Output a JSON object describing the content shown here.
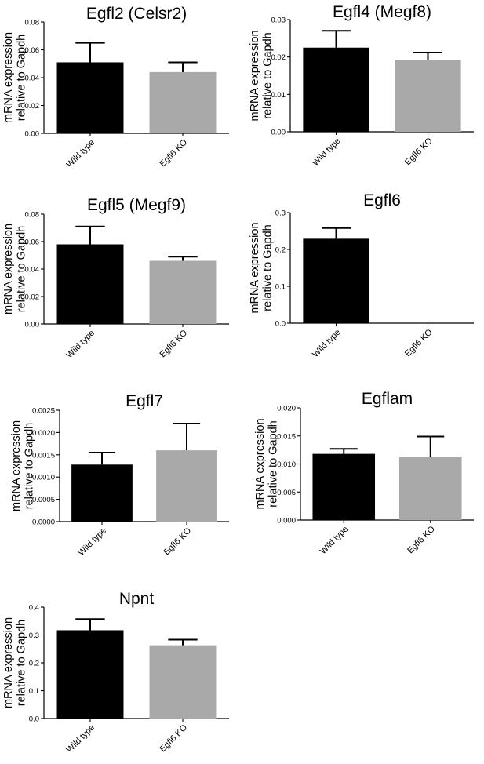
{
  "chart_data": [
    {
      "type": "bar",
      "title": "Egfl2 (Celsr2)",
      "ylabel": "mRNA expression relative to Gapdh",
      "categories": [
        "Wild type",
        "Egfl6 KO"
      ],
      "values": [
        0.051,
        0.044
      ],
      "errors": [
        0.014,
        0.007
      ],
      "ylim": [
        0,
        0.08
      ],
      "yticks": [
        "0.00",
        "0.02",
        "0.04",
        "0.06",
        "0.08"
      ],
      "bar_colors": [
        "#000000",
        "#a9a9a9"
      ]
    },
    {
      "type": "bar",
      "title": "Egfl4 (Megf8)",
      "ylabel": "mRNA expression relative to Gapdh",
      "categories": [
        "Wild type",
        "Egfl6 KO"
      ],
      "values": [
        0.0225,
        0.0192
      ],
      "errors": [
        0.0045,
        0.002
      ],
      "ylim": [
        0,
        0.03
      ],
      "yticks": [
        "0.00",
        "0.01",
        "0.02",
        "0.03"
      ],
      "bar_colors": [
        "#000000",
        "#a9a9a9"
      ]
    },
    {
      "type": "bar",
      "title": "Egfl5 (Megf9)",
      "ylabel": "mRNA expression relative to Gapdh",
      "categories": [
        "Wild type",
        "Egfl6 KO"
      ],
      "values": [
        0.058,
        0.046
      ],
      "errors": [
        0.013,
        0.003
      ],
      "ylim": [
        0,
        0.08
      ],
      "yticks": [
        "0.00",
        "0.02",
        "0.04",
        "0.06",
        "0.08"
      ],
      "bar_colors": [
        "#000000",
        "#a9a9a9"
      ]
    },
    {
      "type": "bar",
      "title": "Egfl6",
      "ylabel": "mRNA expression relative to Gapdh",
      "categories": [
        "Wild type",
        "Egfl6 KO"
      ],
      "values": [
        0.229,
        0
      ],
      "errors": [
        0.029,
        0
      ],
      "ylim": [
        0,
        0.3
      ],
      "yticks": [
        "0.0",
        "0.1",
        "0.2",
        "0.3"
      ],
      "bar_colors": [
        "#000000",
        "#a9a9a9"
      ]
    },
    {
      "type": "bar",
      "title": "Egfl7",
      "ylabel": "mRNA expression relative to Gapdh",
      "categories": [
        "Wild type",
        "Egfl6 KO"
      ],
      "values": [
        0.00128,
        0.0016
      ],
      "errors": [
        0.00027,
        0.0006
      ],
      "ylim": [
        0,
        0.0025
      ],
      "yticks": [
        "0.0000",
        "0.0005",
        "0.0010",
        "0.0015",
        "0.0020",
        "0.0025"
      ],
      "bar_colors": [
        "#000000",
        "#a9a9a9"
      ]
    },
    {
      "type": "bar",
      "title": "Egflam",
      "ylabel": "mRNA expression relative to Gapdh",
      "categories": [
        "Wild type",
        "Egfl6 KO"
      ],
      "values": [
        0.0118,
        0.0113
      ],
      "errors": [
        0.0009,
        0.0036
      ],
      "ylim": [
        0,
        0.02
      ],
      "yticks": [
        "0.000",
        "0.005",
        "0.010",
        "0.015",
        "0.020"
      ],
      "bar_colors": [
        "#000000",
        "#a9a9a9"
      ]
    },
    {
      "type": "bar",
      "title": "Npnt",
      "ylabel": "mRNA expression relative to Gapdh",
      "categories": [
        "Wild type",
        "Egfl6 KO"
      ],
      "values": [
        0.317,
        0.263
      ],
      "errors": [
        0.04,
        0.02
      ],
      "ylim": [
        0,
        0.4
      ],
      "yticks": [
        "0.0",
        "0.1",
        "0.2",
        "0.3",
        "0.4"
      ],
      "bar_colors": [
        "#000000",
        "#a9a9a9"
      ]
    }
  ]
}
